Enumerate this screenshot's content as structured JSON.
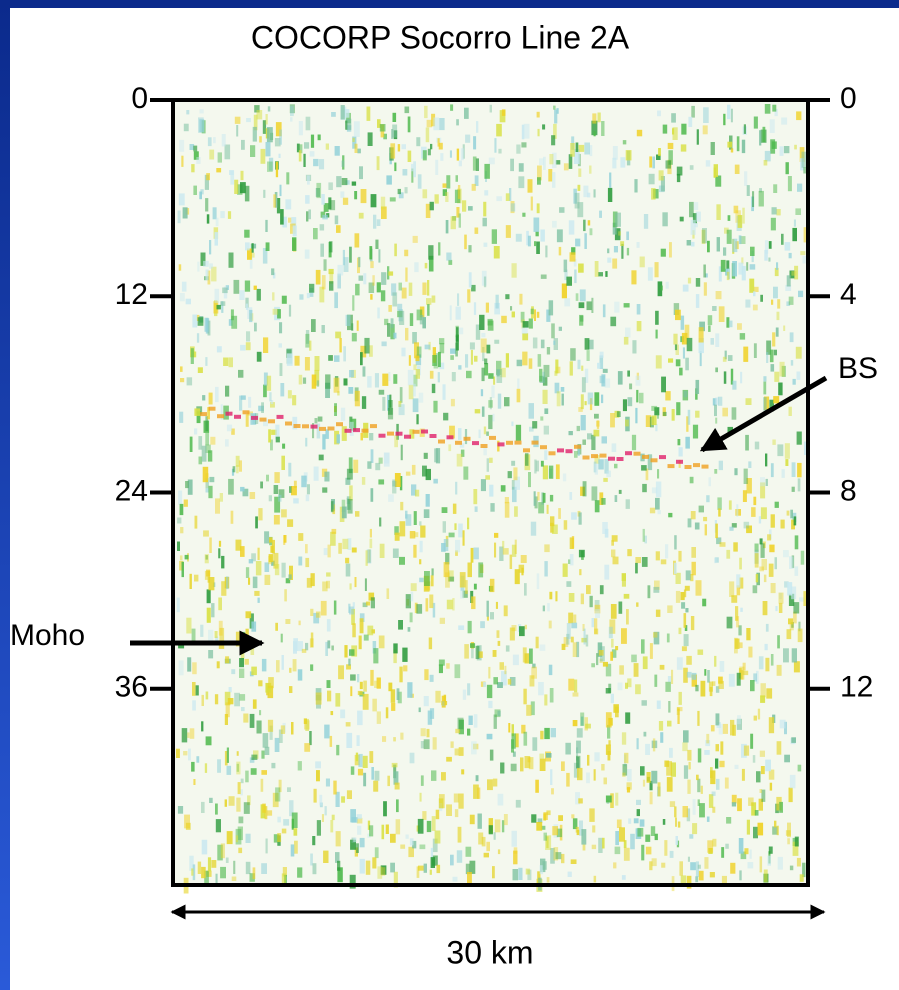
{
  "title": "COCORP Socorro Line 2A",
  "left_axis": {
    "ticks": [
      0,
      12,
      24,
      36
    ],
    "lim": [
      0,
      48
    ]
  },
  "right_axis": {
    "ticks": [
      0,
      4,
      8,
      12
    ],
    "lim": [
      0,
      16
    ]
  },
  "annotations": [
    {
      "text": "BS"
    },
    {
      "text": "Moho"
    }
  ],
  "scale_bar": "30 km"
}
